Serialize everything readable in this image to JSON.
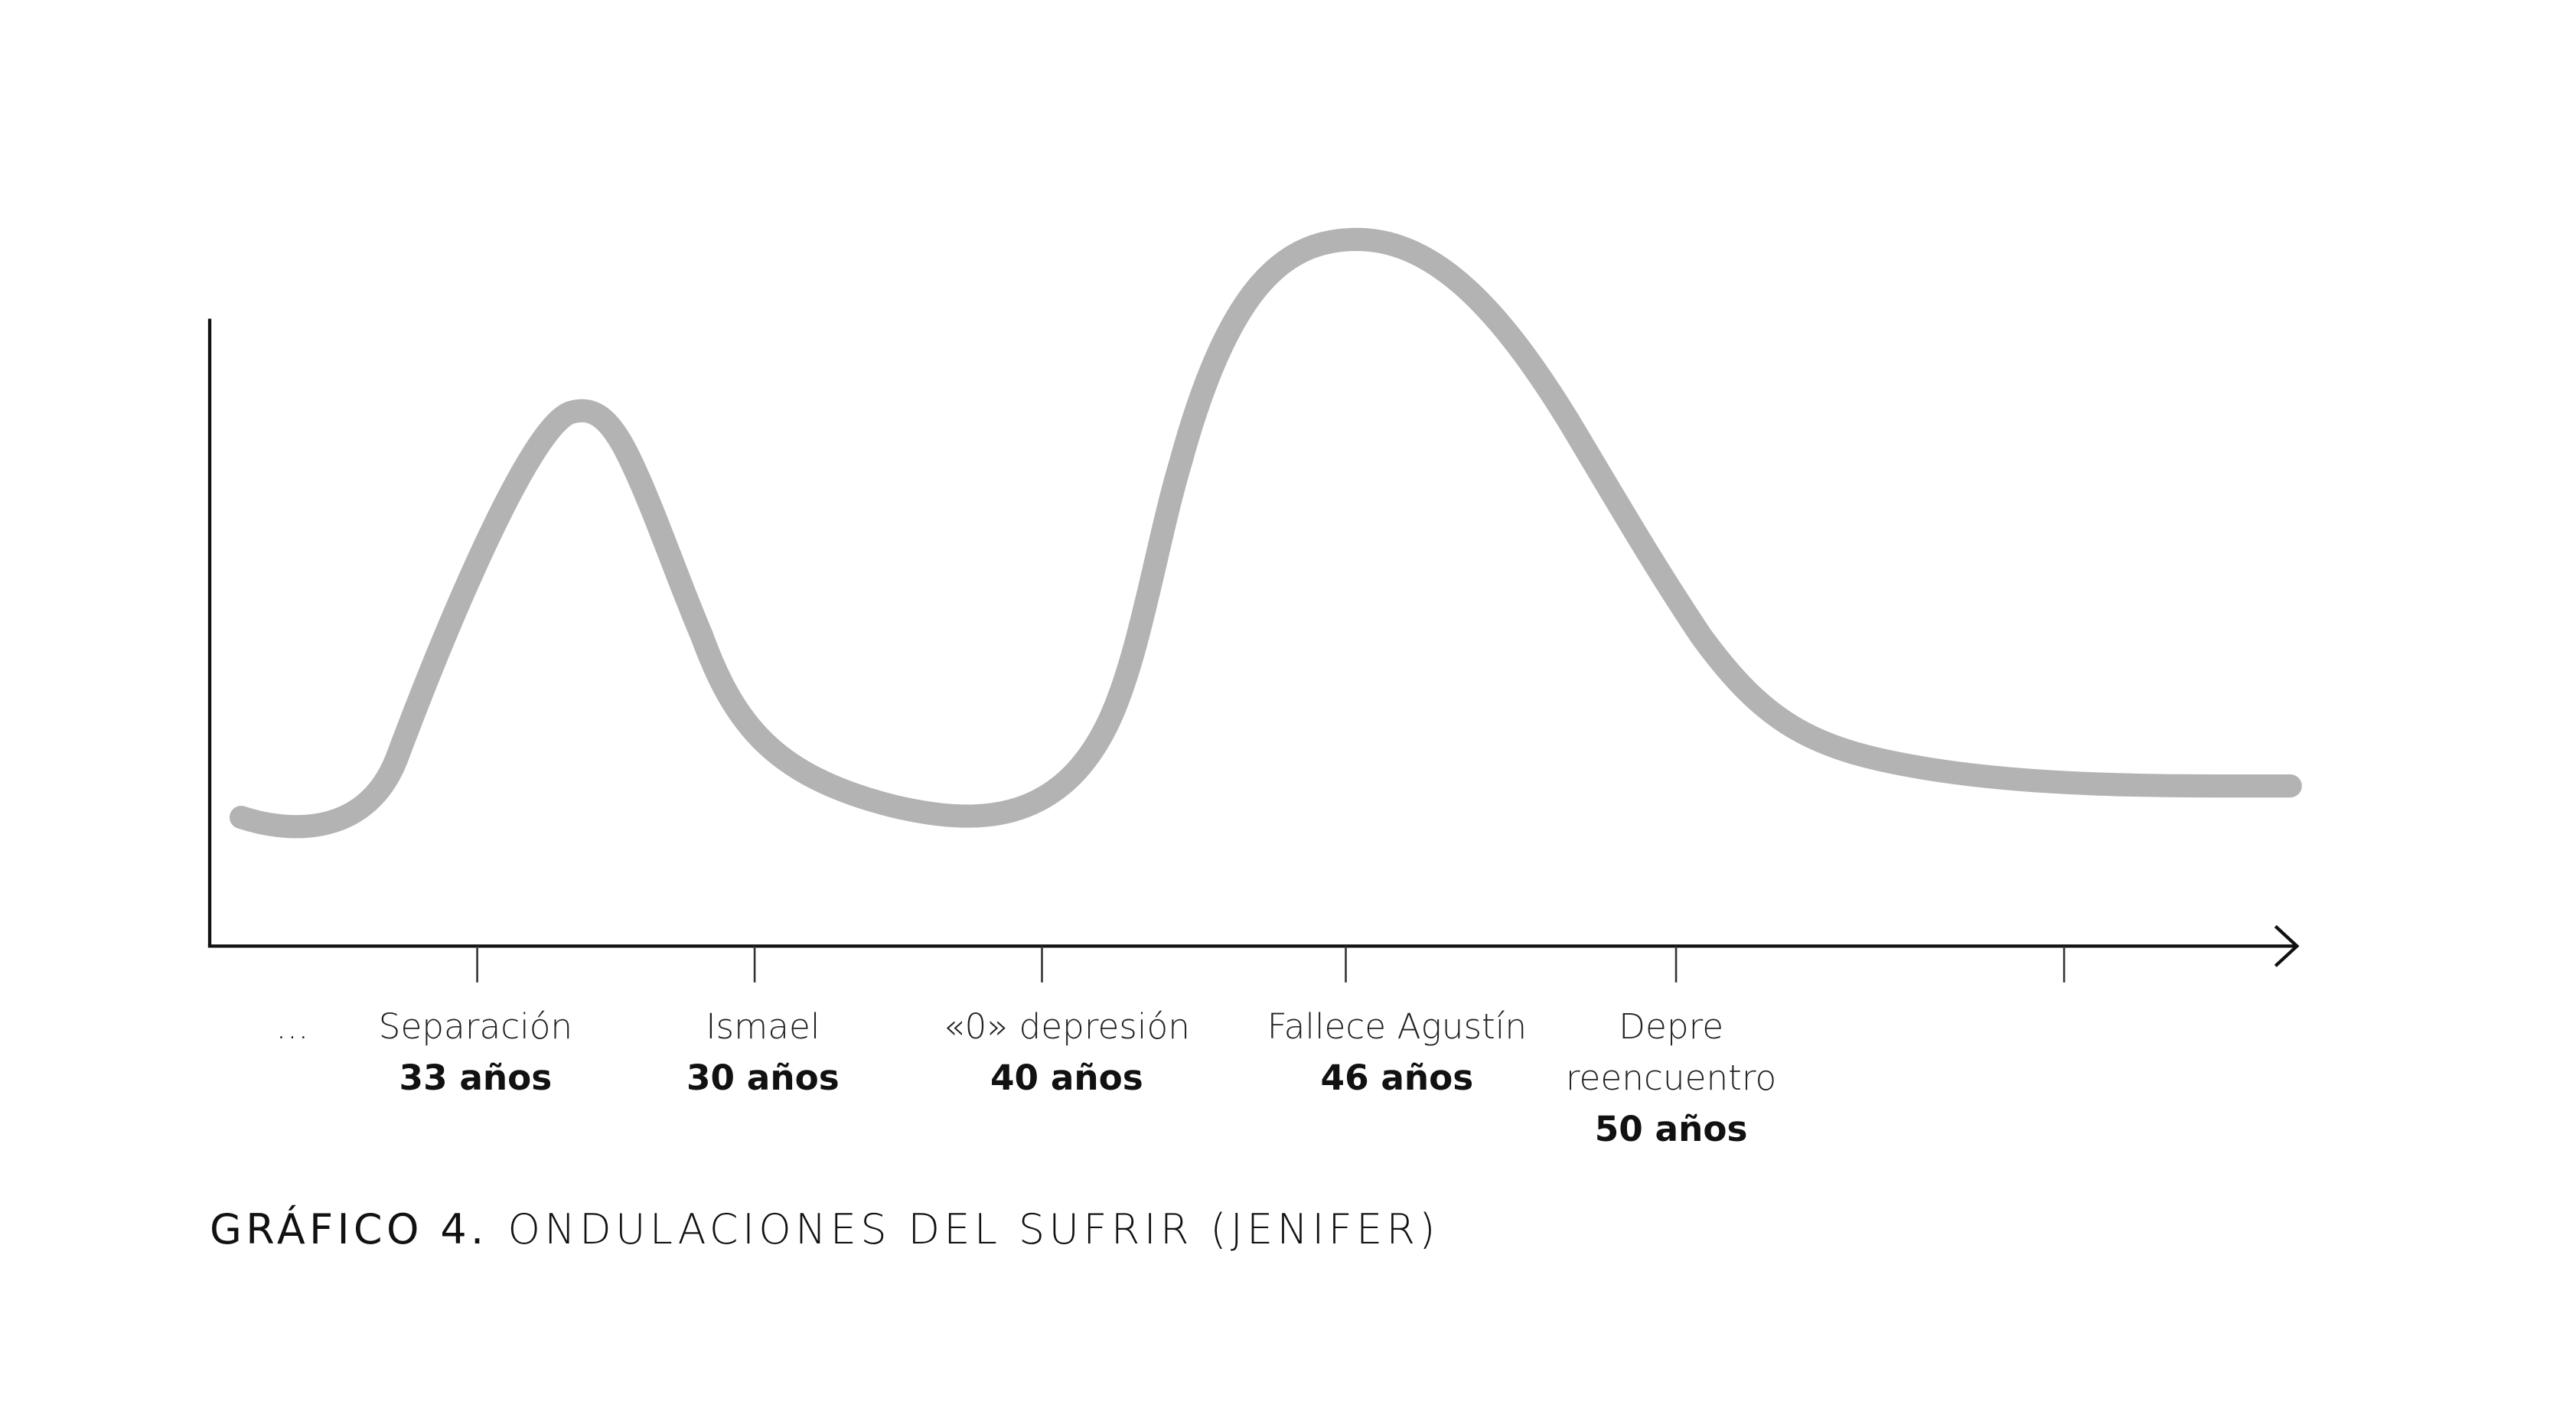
{
  "labels": [
    {
      "event": [
        "..."
      ]
    },
    {
      "event": [
        "Separación"
      ],
      "age": "33 años"
    },
    {
      "event": [
        "Ismael"
      ],
      "age": "30 años"
    },
    {
      "event": [
        "«0» depresión"
      ],
      "age": "40 años"
    },
    {
      "event": [
        "Fallece Agustín"
      ],
      "age": "46 años"
    },
    {
      "event": [
        "Depre",
        "reencuentro"
      ],
      "age": "50 años"
    }
  ],
  "caption": {
    "number": "GRÁFICO 4.",
    "title": "ONDULACIONES DEL SUFRIR (JENIFER)"
  }
}
